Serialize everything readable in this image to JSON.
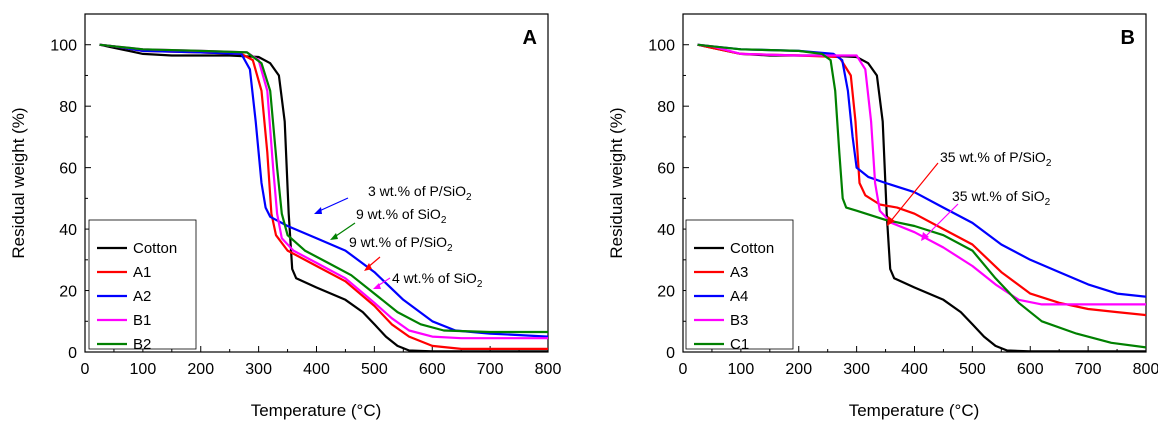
{
  "chart_data": [
    {
      "type": "line",
      "panel_label": "A",
      "xlabel": "Temperature (°C)",
      "ylabel": "Residual weight (%)",
      "xlim": [
        0,
        800
      ],
      "ylim": [
        0,
        110
      ],
      "xticks": [
        0,
        100,
        200,
        300,
        400,
        500,
        600,
        700,
        800
      ],
      "yticks": [
        0,
        20,
        40,
        60,
        80,
        100
      ],
      "grid": false,
      "legend_position": "bottom-left",
      "series": [
        {
          "name": "Cotton",
          "color": "#000000",
          "points": [
            [
              25,
              100
            ],
            [
              50,
              99
            ],
            [
              100,
              97
            ],
            [
              150,
              96.5
            ],
            [
              200,
              96.5
            ],
            [
              250,
              96.5
            ],
            [
              300,
              96
            ],
            [
              320,
              94
            ],
            [
              335,
              90
            ],
            [
              345,
              75
            ],
            [
              352,
              45
            ],
            [
              358,
              27
            ],
            [
              365,
              24
            ],
            [
              400,
              21
            ],
            [
              450,
              17
            ],
            [
              480,
              13
            ],
            [
              500,
              9
            ],
            [
              520,
              5
            ],
            [
              540,
              2
            ],
            [
              560,
              0.5
            ],
            [
              600,
              0.2
            ],
            [
              700,
              0.2
            ],
            [
              800,
              0.2
            ]
          ]
        },
        {
          "name": "A1",
          "color": "#ff0000",
          "points": [
            [
              25,
              100
            ],
            [
              50,
              99.5
            ],
            [
              100,
              98
            ],
            [
              200,
              97.5
            ],
            [
              270,
              97
            ],
            [
              290,
              95
            ],
            [
              305,
              85
            ],
            [
              315,
              65
            ],
            [
              322,
              45
            ],
            [
              330,
              38
            ],
            [
              350,
              33
            ],
            [
              400,
              28
            ],
            [
              450,
              23
            ],
            [
              500,
              15
            ],
            [
              530,
              9
            ],
            [
              560,
              5
            ],
            [
              600,
              2
            ],
            [
              650,
              1
            ],
            [
              700,
              1
            ],
            [
              800,
              1
            ]
          ]
        },
        {
          "name": "A2",
          "color": "#0000ff",
          "points": [
            [
              25,
              100
            ],
            [
              50,
              99.5
            ],
            [
              100,
              98
            ],
            [
              200,
              97.5
            ],
            [
              270,
              97
            ],
            [
              285,
              92
            ],
            [
              295,
              75
            ],
            [
              305,
              55
            ],
            [
              312,
              47
            ],
            [
              320,
              44
            ],
            [
              350,
              41
            ],
            [
              400,
              37
            ],
            [
              450,
              33
            ],
            [
              500,
              26
            ],
            [
              550,
              17
            ],
            [
              600,
              10
            ],
            [
              640,
              7
            ],
            [
              700,
              6
            ],
            [
              800,
              5
            ]
          ]
        },
        {
          "name": "B1",
          "color": "#ff00ff",
          "points": [
            [
              25,
              100
            ],
            [
              50,
              99.5
            ],
            [
              100,
              98.5
            ],
            [
              200,
              98
            ],
            [
              280,
              97.5
            ],
            [
              300,
              95
            ],
            [
              315,
              85
            ],
            [
              325,
              60
            ],
            [
              332,
              45
            ],
            [
              340,
              37
            ],
            [
              360,
              33
            ],
            [
              400,
              29
            ],
            [
              450,
              24
            ],
            [
              500,
              16
            ],
            [
              530,
              11
            ],
            [
              560,
              7
            ],
            [
              600,
              5
            ],
            [
              650,
              4.5
            ],
            [
              700,
              4.5
            ],
            [
              800,
              4.5
            ]
          ]
        },
        {
          "name": "B2",
          "color": "#008000",
          "points": [
            [
              25,
              100
            ],
            [
              50,
              99.5
            ],
            [
              100,
              98.5
            ],
            [
              200,
              98
            ],
            [
              280,
              97.5
            ],
            [
              305,
              94
            ],
            [
              320,
              85
            ],
            [
              332,
              60
            ],
            [
              340,
              45
            ],
            [
              350,
              38
            ],
            [
              380,
              33
            ],
            [
              420,
              29
            ],
            [
              460,
              25
            ],
            [
              500,
              19
            ],
            [
              540,
              13
            ],
            [
              580,
              9
            ],
            [
              620,
              7
            ],
            [
              700,
              6.5
            ],
            [
              800,
              6.5
            ]
          ]
        }
      ],
      "annotations": [
        {
          "text": "9 wt.% of P/SiO",
          "sub": "2"
        },
        {
          "text": "9 wt.% of SiO",
          "sub": "2"
        },
        {
          "text": "3 wt.% of P/SiO",
          "sub": "2"
        },
        {
          "text": "4 wt.% of SiO",
          "sub": "2"
        }
      ]
    },
    {
      "type": "line",
      "panel_label": "B",
      "xlabel": "Temperature (°C)",
      "ylabel": "Residual weight (%)",
      "xlim": [
        0,
        800
      ],
      "ylim": [
        0,
        110
      ],
      "xticks": [
        0,
        100,
        200,
        300,
        400,
        500,
        600,
        700,
        800
      ],
      "yticks": [
        0,
        20,
        40,
        60,
        80,
        100
      ],
      "grid": false,
      "legend_position": "bottom-left",
      "series": [
        {
          "name": "Cotton",
          "color": "#000000",
          "points": [
            [
              25,
              100
            ],
            [
              50,
              99
            ],
            [
              100,
              97
            ],
            [
              150,
              96.5
            ],
            [
              200,
              96.5
            ],
            [
              250,
              96.5
            ],
            [
              300,
              96
            ],
            [
              320,
              94
            ],
            [
              335,
              90
            ],
            [
              345,
              75
            ],
            [
              352,
              45
            ],
            [
              358,
              27
            ],
            [
              365,
              24
            ],
            [
              400,
              21
            ],
            [
              450,
              17
            ],
            [
              480,
              13
            ],
            [
              500,
              9
            ],
            [
              520,
              5
            ],
            [
              540,
              2
            ],
            [
              560,
              0.5
            ],
            [
              600,
              0.2
            ],
            [
              700,
              0.2
            ],
            [
              800,
              0.2
            ]
          ]
        },
        {
          "name": "A3",
          "color": "#ff0000",
          "points": [
            [
              25,
              100
            ],
            [
              50,
              99
            ],
            [
              100,
              97
            ],
            [
              200,
              96.5
            ],
            [
              270,
              96
            ],
            [
              290,
              90
            ],
            [
              298,
              75
            ],
            [
              305,
              55
            ],
            [
              315,
              51
            ],
            [
              340,
              48
            ],
            [
              370,
              47
            ],
            [
              400,
              45
            ],
            [
              450,
              40
            ],
            [
              500,
              35
            ],
            [
              550,
              26
            ],
            [
              600,
              19
            ],
            [
              650,
              16
            ],
            [
              700,
              14
            ],
            [
              750,
              13
            ],
            [
              800,
              12
            ]
          ]
        },
        {
          "name": "A4",
          "color": "#0000ff",
          "points": [
            [
              25,
              100
            ],
            [
              50,
              99.5
            ],
            [
              100,
              98.5
            ],
            [
              200,
              98
            ],
            [
              260,
              97
            ],
            [
              275,
              95
            ],
            [
              285,
              85
            ],
            [
              293,
              70
            ],
            [
              300,
              60
            ],
            [
              320,
              57
            ],
            [
              350,
              55
            ],
            [
              400,
              52
            ],
            [
              450,
              47
            ],
            [
              500,
              42
            ],
            [
              550,
              35
            ],
            [
              600,
              30
            ],
            [
              650,
              26
            ],
            [
              700,
              22
            ],
            [
              750,
              19
            ],
            [
              800,
              18
            ]
          ]
        },
        {
          "name": "B3",
          "color": "#ff00ff",
          "points": [
            [
              25,
              100
            ],
            [
              50,
              99.5
            ],
            [
              100,
              97
            ],
            [
              200,
              96.5
            ],
            [
              300,
              96.5
            ],
            [
              315,
              92
            ],
            [
              325,
              75
            ],
            [
              332,
              55
            ],
            [
              340,
              46
            ],
            [
              360,
              42
            ],
            [
              400,
              39
            ],
            [
              450,
              34
            ],
            [
              500,
              28
            ],
            [
              540,
              22
            ],
            [
              580,
              17
            ],
            [
              620,
              15.5
            ],
            [
              700,
              15.5
            ],
            [
              800,
              15.5
            ]
          ]
        },
        {
          "name": "C1",
          "color": "#008000",
          "points": [
            [
              25,
              100
            ],
            [
              50,
              99.5
            ],
            [
              100,
              98.5
            ],
            [
              200,
              98
            ],
            [
              240,
              97
            ],
            [
              255,
              95
            ],
            [
              263,
              85
            ],
            [
              270,
              65
            ],
            [
              276,
              50
            ],
            [
              282,
              47
            ],
            [
              300,
              46
            ],
            [
              350,
              43
            ],
            [
              400,
              41
            ],
            [
              450,
              38
            ],
            [
              500,
              33
            ],
            [
              540,
              24
            ],
            [
              580,
              16
            ],
            [
              620,
              10
            ],
            [
              680,
              6
            ],
            [
              740,
              3
            ],
            [
              800,
              1.5
            ]
          ]
        }
      ],
      "annotations": [
        {
          "text": "35 wt.% of P/SiO",
          "sub": "2"
        },
        {
          "text": "35 wt.% of SiO",
          "sub": "2"
        }
      ]
    }
  ]
}
